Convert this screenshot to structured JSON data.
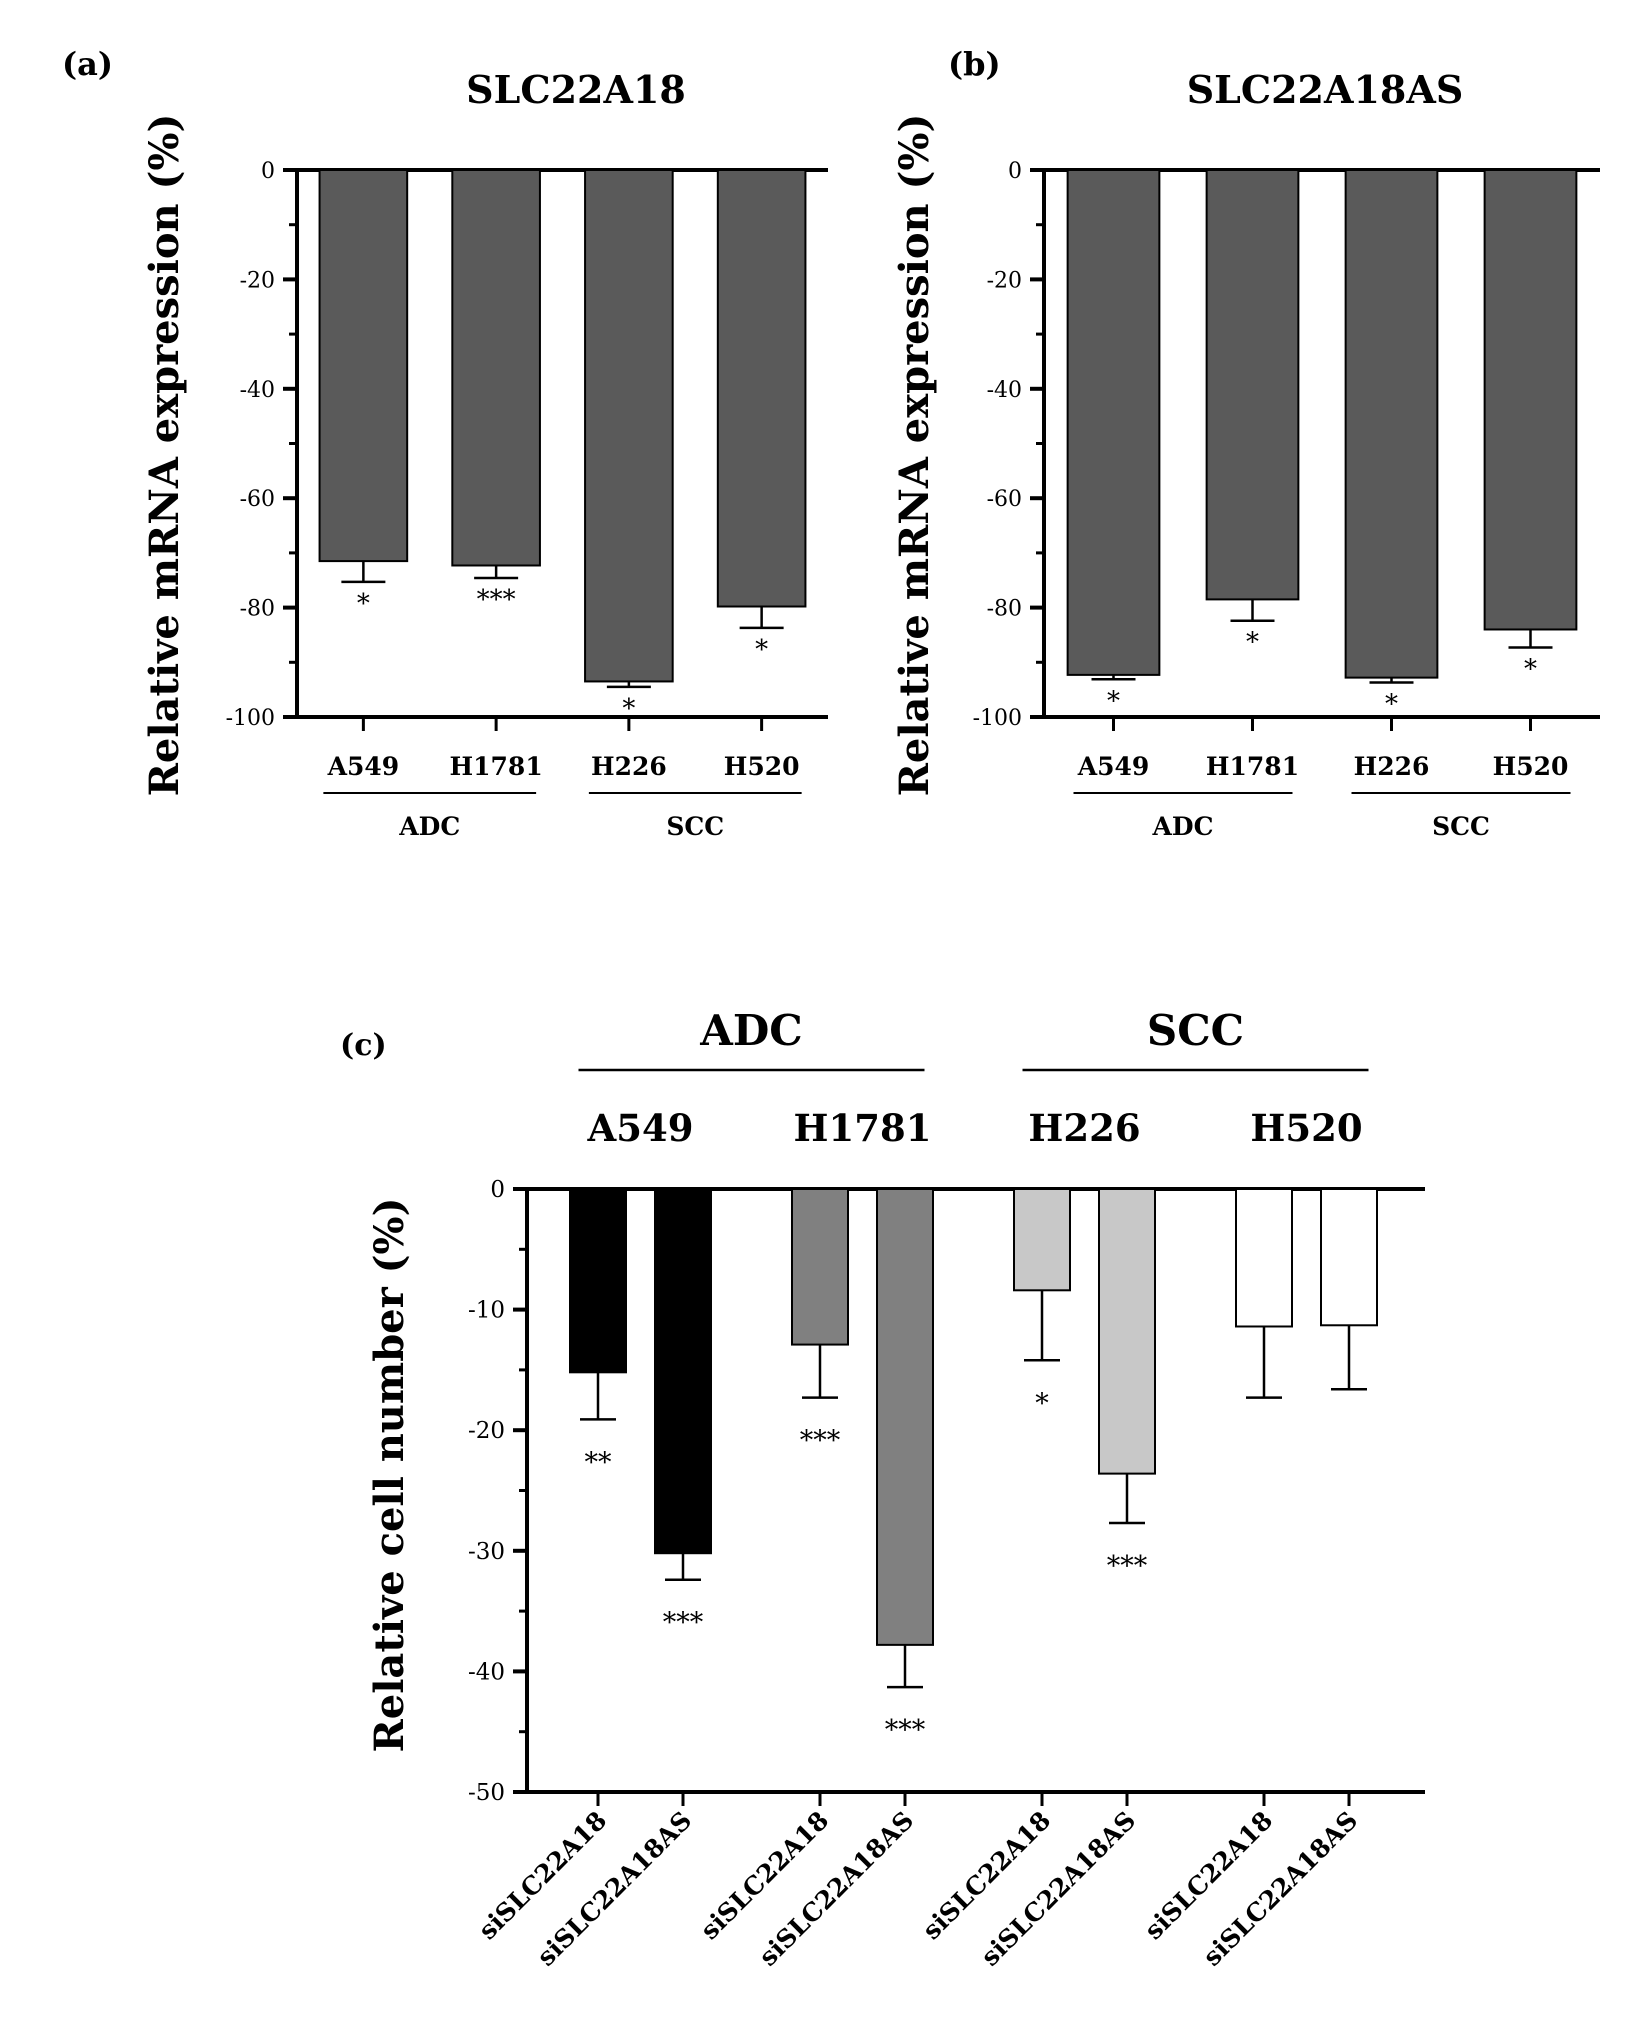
{
  "chart_data": [
    {
      "panel_label": "(a)",
      "type": "bar",
      "title": "SLC22A18",
      "ylabel": "Relative mRNA expression (%)",
      "xlabel": "",
      "ylim": [
        -100,
        0
      ],
      "yticks": [
        0,
        -20,
        -40,
        -60,
        -80,
        -100
      ],
      "grid": false,
      "bar_color": "#5a5a5a",
      "categories": [
        "A549",
        "H1781",
        "H226",
        "H520"
      ],
      "values": [
        -71.5,
        -72.3,
        -93.5,
        -79.8
      ],
      "errors": [
        3.8,
        2.3,
        1.0,
        3.9
      ],
      "significance": [
        "*",
        "***",
        "*",
        "*"
      ],
      "groups": [
        {
          "label": "ADC",
          "categories": [
            "A549",
            "H1781"
          ]
        },
        {
          "label": "SCC",
          "categories": [
            "H226",
            "H520"
          ]
        }
      ]
    },
    {
      "panel_label": "(b)",
      "type": "bar",
      "title": "SLC22A18AS",
      "ylabel": "Relative mRNA expression (%)",
      "xlabel": "",
      "ylim": [
        -100,
        0
      ],
      "yticks": [
        0,
        -20,
        -40,
        -60,
        -80,
        -100
      ],
      "grid": false,
      "bar_color": "#5a5a5a",
      "categories": [
        "A549",
        "H1781",
        "H226",
        "H520"
      ],
      "values": [
        -92.3,
        -78.5,
        -92.8,
        -84.0
      ],
      "errors": [
        0.8,
        3.9,
        0.9,
        3.3
      ],
      "significance": [
        "*",
        "*",
        "*",
        "*"
      ],
      "groups": [
        {
          "label": "ADC",
          "categories": [
            "A549",
            "H1781"
          ]
        },
        {
          "label": "SCC",
          "categories": [
            "H226",
            "H520"
          ]
        }
      ]
    },
    {
      "panel_label": "(c)",
      "type": "bar",
      "title": "",
      "ylabel": "Relative cell number (%)",
      "xlabel": "",
      "ylim": [
        -50,
        0
      ],
      "yticks": [
        0,
        -10,
        -20,
        -30,
        -40,
        -50
      ],
      "grid": false,
      "categories": [
        "siSLC22A18",
        "siSLC22A18AS",
        "siSLC22A18",
        "siSLC22A18AS",
        "siSLC22A18",
        "siSLC22A18AS",
        "siSLC22A18",
        "siSLC22A18AS"
      ],
      "values": [
        -15.2,
        -30.2,
        -12.9,
        -37.8,
        -8.4,
        -23.6,
        -11.4,
        -11.3
      ],
      "errors": [
        3.9,
        2.2,
        4.4,
        3.5,
        5.8,
        4.1,
        5.9,
        5.3
      ],
      "significance": [
        "**",
        "***",
        "***",
        "***",
        "*",
        "***",
        "",
        ""
      ],
      "bar_colors": [
        "#000000",
        "#000000",
        "#808080",
        "#808080",
        "#c8c8c8",
        "#c8c8c8",
        "#ffffff",
        "#ffffff"
      ],
      "cell_lines": [
        {
          "label": "A549",
          "group": "ADC"
        },
        {
          "label": "H1781",
          "group": "ADC"
        },
        {
          "label": "H226",
          "group": "SCC"
        },
        {
          "label": "H520",
          "group": "SCC"
        }
      ],
      "groups": [
        {
          "label": "ADC",
          "cell_lines": [
            "A549",
            "H1781"
          ]
        },
        {
          "label": "SCC",
          "cell_lines": [
            "H226",
            "H520"
          ]
        }
      ]
    }
  ]
}
